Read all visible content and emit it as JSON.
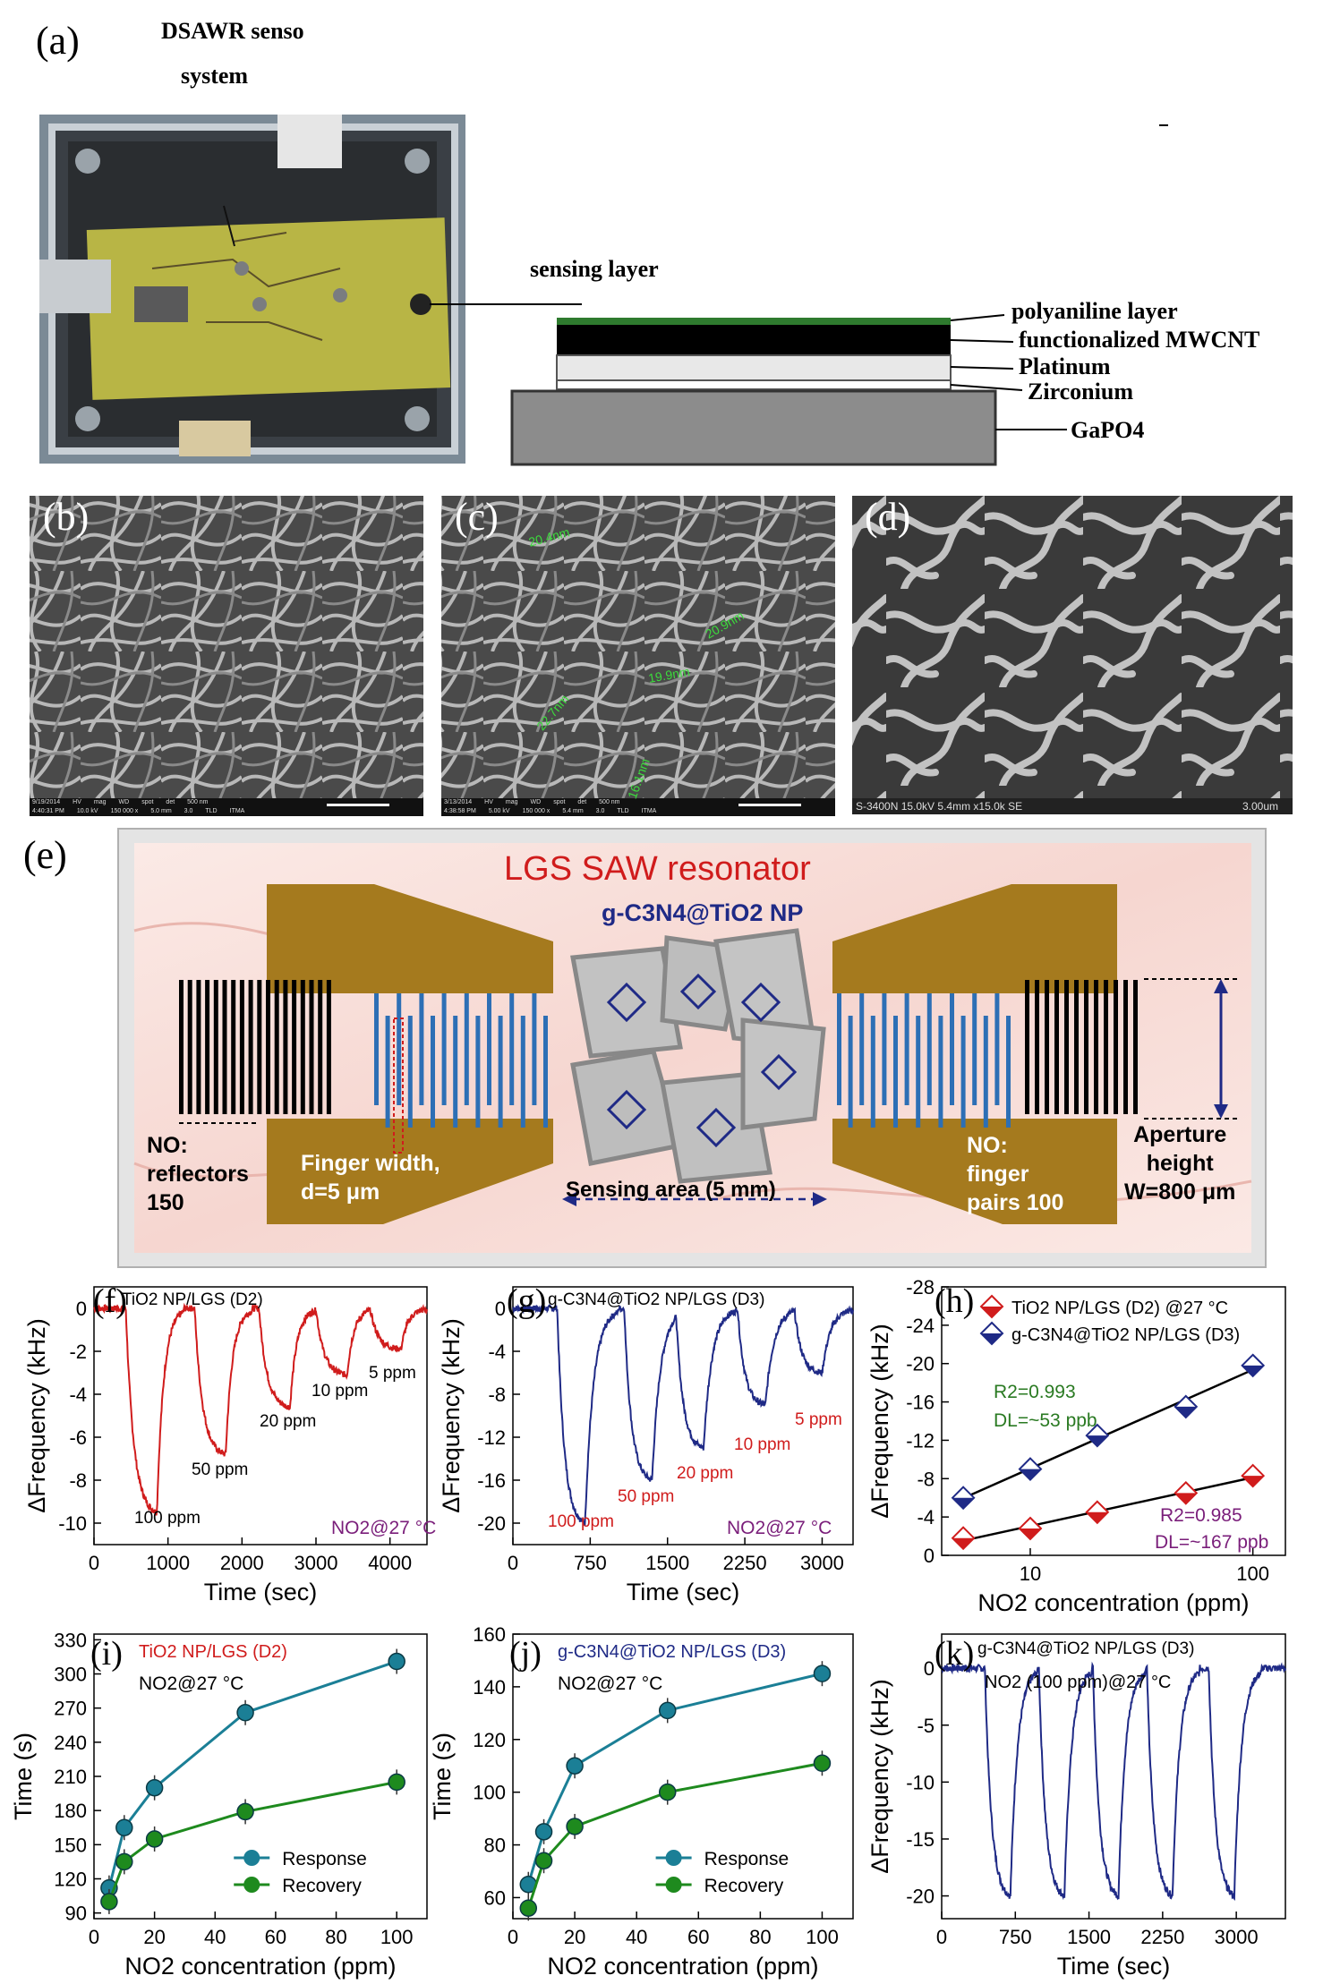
{
  "colors": {
    "red": "#d01c1c",
    "navy": "#1f2a86",
    "gold": "#a57a1e",
    "teal": "#1b7f96",
    "green": "#1e8a1e",
    "purple": "#7a1e7a",
    "olive": "#2a7a22"
  },
  "panel_labels": {
    "a": "(a)",
    "b": "(b)",
    "c": "(c)",
    "d": "(d)",
    "e": "(e)",
    "f": "(f)",
    "g": "(g)",
    "h": "(h)",
    "i": "(i)",
    "j": "(j)",
    "k": "(k)"
  },
  "a": {
    "title_line1": "DSAWR senso",
    "title_line2": "system",
    "sensing_layer": "sensing layer",
    "layers": [
      "polyaniline layer",
      "functionalized MWCNT",
      "Platinum",
      "Zirconium",
      "GaPO4"
    ]
  },
  "sem": {
    "b_footer": [
      "9/19/2014",
      "HV",
      "mag",
      "WD",
      "spot",
      "det",
      "500 nm",
      "4:40:31 PM",
      "10.0 kV",
      "150 000 x",
      "5.0 mm",
      "3.0",
      "TLD",
      "ITMA"
    ],
    "c_footer": [
      "3/13/2014",
      "HV",
      "mag",
      "WD",
      "spot",
      "det",
      "500 nm",
      "4:38:58 PM",
      "5.00 kV",
      "150 000 x",
      "5.4 mm",
      "3.0",
      "TLD",
      "ITMA"
    ],
    "c_measurements": [
      "20.4nm",
      "20.9nm",
      "19.9nm",
      "22.7nm",
      "16.1nm"
    ],
    "d_footer_left": "S-3400N 15.0kV 5.4mm x15.0k SE",
    "d_footer_right": "3.00um"
  },
  "e": {
    "title": "LGS SAW resonator",
    "material": "g-C3N4@TiO2 NP",
    "reflectors": [
      "NO:",
      "reflectors",
      "150"
    ],
    "finger_width": [
      "Finger width,",
      "d=5 μm"
    ],
    "sensing_area": "Sensing area (5 mm)",
    "finger_pairs": [
      "NO:",
      "finger",
      "pairs 100"
    ],
    "aperture": [
      "Aperture",
      "height",
      "W=800 μm"
    ]
  },
  "chart_data": [
    {
      "id": "f",
      "type": "line",
      "series": [
        {
          "name": "TiO2 NP/LGS (D2)"
        }
      ],
      "annotation": "NO2@27 °C",
      "point_labels": [
        "100 ppm",
        "50 ppm",
        "20 ppm",
        "10 ppm",
        "5 ppm"
      ],
      "concentrations": [
        100,
        50,
        20,
        10,
        5
      ],
      "dips": [
        -9.5,
        -6.8,
        -4.6,
        -3.1,
        -1.9
      ],
      "dip_times": [
        850,
        1780,
        2650,
        3420,
        4150
      ],
      "xlabel": "Time (sec)",
      "ylabel": "ΔFrequency (kHz)",
      "xlim": [
        0,
        4500
      ],
      "ylim": [
        -11,
        1
      ],
      "xticks": [
        0,
        1000,
        2000,
        3000,
        4000
      ],
      "yticks": [
        0,
        -2,
        -4,
        -6,
        -8,
        -10
      ]
    },
    {
      "id": "g",
      "type": "line",
      "series": [
        {
          "name": "g-C3N4@TiO2 NP/LGS (D3)"
        }
      ],
      "annotation": "NO2@27 °C",
      "point_labels": [
        "100 ppm",
        "50 ppm",
        "20 ppm",
        "10 ppm",
        "5 ppm"
      ],
      "concentrations": [
        100,
        50,
        20,
        10,
        5
      ],
      "dips": [
        -20,
        -16,
        -13,
        -9,
        -6
      ],
      "dip_times": [
        700,
        1350,
        1850,
        2450,
        3000
      ],
      "xlabel": "Time (sec)",
      "ylabel": "ΔFrequency (kHz)",
      "xlim": [
        0,
        3300
      ],
      "ylim": [
        -22,
        2
      ],
      "xticks": [
        0,
        750,
        1500,
        2250,
        3000
      ],
      "yticks": [
        0,
        -4,
        -8,
        -12,
        -16,
        -20
      ]
    },
    {
      "id": "h",
      "type": "scatter",
      "xscale": "log",
      "series": [
        {
          "name": "TiO2 NP/LGS (D2) @27 °C",
          "x": [
            5,
            10,
            20,
            50,
            100
          ],
          "y": [
            -1.8,
            -2.8,
            -4.5,
            -6.5,
            -8.3
          ]
        },
        {
          "name": "g-C3N4@TiO2 NP/LGS (D3)",
          "x": [
            5,
            10,
            20,
            50,
            100
          ],
          "y": [
            -6,
            -9,
            -12.5,
            -15.5,
            -19.8
          ]
        }
      ],
      "fits": [
        {
          "r2": "R2=0.993",
          "dl": "DL=~53 ppb"
        },
        {
          "r2": "R2=0.985",
          "dl": "DL=~167 ppb"
        }
      ],
      "xlabel": "NO2 concentration (ppm)",
      "ylabel": "ΔFrequency (kHz)",
      "xlim": [
        4,
        140
      ],
      "ylim": [
        0,
        -28
      ],
      "xticks": [
        10,
        100
      ],
      "yticks": [
        0,
        -4,
        -8,
        -12,
        -16,
        -20,
        -24,
        -28
      ]
    },
    {
      "id": "i",
      "type": "line",
      "title": "TiO2 NP/LGS (D2)",
      "annotation": "NO2@27 °C",
      "x": [
        5,
        10,
        20,
        50,
        100
      ],
      "series": [
        {
          "name": "Response",
          "values": [
            112,
            165,
            200,
            266,
            311
          ]
        },
        {
          "name": "Recovery",
          "values": [
            100,
            135,
            155,
            179,
            205
          ]
        }
      ],
      "xlabel": "NO2 concentration (ppm)",
      "ylabel": "Time (s)",
      "xlim": [
        0,
        110
      ],
      "ylim": [
        85,
        335
      ],
      "xticks": [
        0,
        20,
        40,
        60,
        80,
        100
      ],
      "yticks": [
        90,
        120,
        150,
        180,
        210,
        240,
        270,
        300,
        330
      ]
    },
    {
      "id": "j",
      "type": "line",
      "title": "g-C3N4@TiO2 NP/LGS (D3)",
      "annotation": "NO2@27 °C",
      "x": [
        5,
        10,
        20,
        50,
        100
      ],
      "series": [
        {
          "name": "Response",
          "values": [
            65,
            85,
            110,
            131,
            145
          ]
        },
        {
          "name": "Recovery",
          "values": [
            56,
            74,
            87,
            100,
            111
          ]
        }
      ],
      "xlabel": "NO2 concentration (ppm)",
      "ylabel": "Time (s)",
      "xlim": [
        0,
        110
      ],
      "ylim": [
        52,
        160
      ],
      "xticks": [
        0,
        20,
        40,
        60,
        80,
        100
      ],
      "yticks": [
        60,
        80,
        100,
        120,
        140,
        160
      ]
    },
    {
      "id": "k",
      "type": "line",
      "series": [
        {
          "name": "g-C3N4@TiO2 NP/LGS (D3)"
        }
      ],
      "annotation": "NO2 (100 ppm)@27 °C",
      "dip": -20,
      "cycles": 5,
      "dip_times": [
        700,
        1250,
        1800,
        2350,
        2980
      ],
      "xlabel": "Time (sec)",
      "ylabel": "ΔFrequency (kHz)",
      "xlim": [
        0,
        3500
      ],
      "ylim": [
        -22,
        3
      ],
      "xticks": [
        0,
        750,
        1500,
        2250,
        3000
      ],
      "yticks": [
        0,
        -5,
        -10,
        -15,
        -20
      ]
    }
  ]
}
